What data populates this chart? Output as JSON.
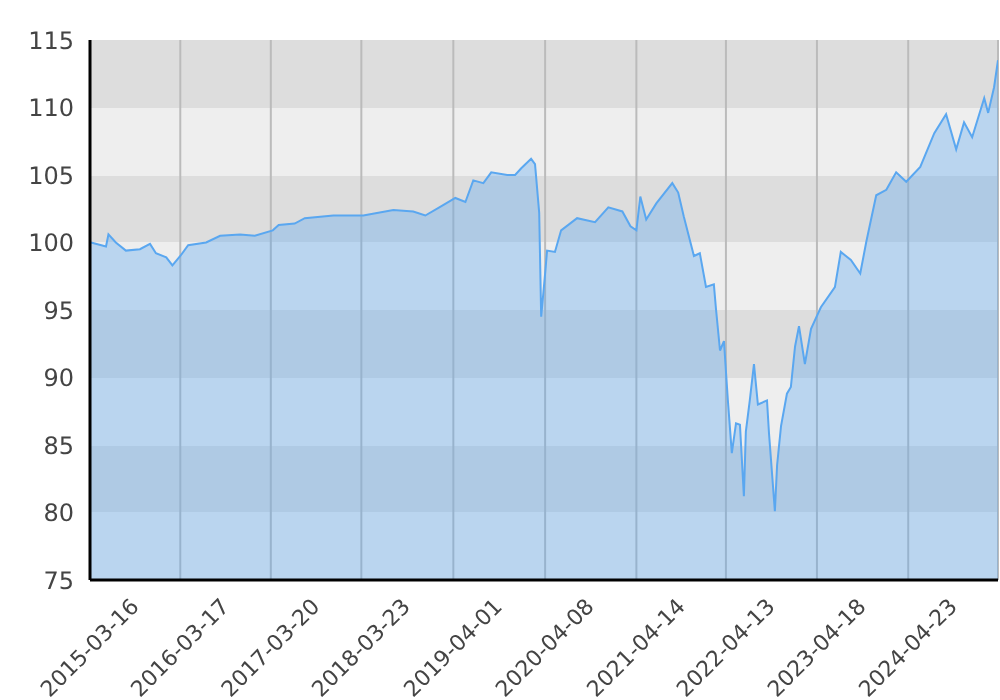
{
  "chart_data": {
    "type": "area",
    "x": [
      "2015-03-20",
      "2015-05-20",
      "2015-05-30",
      "2015-06-29",
      "2015-08-09",
      "2015-10-05",
      "2015-11-15",
      "2015-12-09",
      "2016-01-20",
      "2016-02-14",
      "2016-03-17",
      "2016-04-18",
      "2016-06-30",
      "2016-08-26",
      "2016-11-15",
      "2017-01-14",
      "2017-03-28",
      "2017-04-21",
      "2017-06-25",
      "2017-08-05",
      "2017-11-29",
      "2018-03-31",
      "2018-07-31",
      "2018-10-20",
      "2018-12-08",
      "2019-02-03",
      "2019-04-09",
      "2019-05-20",
      "2019-06-21",
      "2019-08-01",
      "2019-09-02",
      "2019-11-06",
      "2019-12-08",
      "2020-01-02",
      "2020-02-11",
      "2020-02-27",
      "2020-03-15",
      "2020-03-23",
      "2020-04-08",
      "2020-04-16",
      "2020-05-18",
      "2020-06-12",
      "2020-08-16",
      "2020-10-28",
      "2020-12-21",
      "2021-02-16",
      "2021-03-21",
      "2021-04-14",
      "2021-04-30",
      "2021-05-24",
      "2021-07-04",
      "2021-09-07",
      "2021-10-01",
      "2021-10-24",
      "2021-12-04",
      "2021-12-28",
      "2022-01-22",
      "2022-02-23",
      "2022-03-03",
      "2022-03-20",
      "2022-04-05",
      "2022-04-21",
      "2022-05-07",
      "2022-05-24",
      "2022-06-09",
      "2022-06-25",
      "2022-07-03",
      "2022-07-19",
      "2022-08-05",
      "2022-08-21",
      "2022-09-27",
      "2022-10-05",
      "2022-10-29",
      "2022-11-07",
      "2022-11-23",
      "2022-12-17",
      "2023-01-02",
      "2023-01-19",
      "2023-02-04",
      "2023-02-28",
      "2023-03-25",
      "2023-05-04",
      "2023-06-30",
      "2023-07-24",
      "2023-09-03",
      "2023-10-11",
      "2023-11-04",
      "2023-12-15",
      "2024-01-25",
      "2024-03-05",
      "2024-04-15",
      "2024-06-11",
      "2024-08-07",
      "2024-09-24",
      "2024-11-04",
      "2024-12-06",
      "2025-01-08",
      "2025-02-26",
      "2025-03-14",
      "2025-04-07",
      "2025-04-23"
    ],
    "series": [
      {
        "color": "#5aa7f0",
        "values": [
          100.0,
          99.7,
          100.6,
          100.0,
          99.4,
          99.5,
          99.9,
          99.2,
          98.9,
          98.3,
          99.0,
          99.8,
          100.0,
          100.5,
          100.6,
          100.5,
          100.9,
          101.3,
          101.4,
          101.8,
          102.0,
          102.0,
          102.4,
          102.3,
          102.0,
          102.6,
          103.3,
          103.0,
          104.6,
          104.4,
          105.2,
          105.0,
          105.0,
          105.5,
          106.2,
          105.8,
          102.2,
          94.5,
          97.7,
          99.4,
          99.3,
          100.9,
          101.8,
          101.5,
          102.6,
          102.3,
          101.2,
          100.9,
          103.4,
          101.7,
          102.9,
          104.4,
          103.7,
          101.9,
          99.0,
          99.2,
          96.7,
          96.9,
          95.2,
          92.0,
          92.7,
          88.3,
          84.4,
          86.6,
          86.5,
          81.2,
          86.0,
          88.3,
          91.0,
          88.0,
          88.3,
          85.9,
          80.1,
          83.5,
          86.4,
          88.8,
          89.3,
          92.3,
          93.8,
          91.0,
          93.6,
          95.2,
          96.7,
          99.3,
          98.7,
          97.7,
          100.0,
          103.5,
          103.9,
          105.2,
          104.5,
          105.6,
          108.1,
          109.5,
          106.9,
          108.9,
          107.8,
          110.7,
          109.6,
          111.5,
          113.5
        ]
      }
    ],
    "xlim": [
      "2015-03-16",
      "2025-04-23"
    ],
    "xticks": [
      "2015-03-16",
      "2016-03-17",
      "2017-03-20",
      "2018-03-23",
      "2019-04-01",
      "2020-04-08",
      "2021-04-14",
      "2022-04-13",
      "2023-04-18",
      "2024-04-23"
    ],
    "ylim": [
      75,
      115
    ],
    "yticks": [
      75,
      80,
      85,
      90,
      95,
      100,
      105,
      110,
      115
    ],
    "grid": true,
    "legend": false
  }
}
